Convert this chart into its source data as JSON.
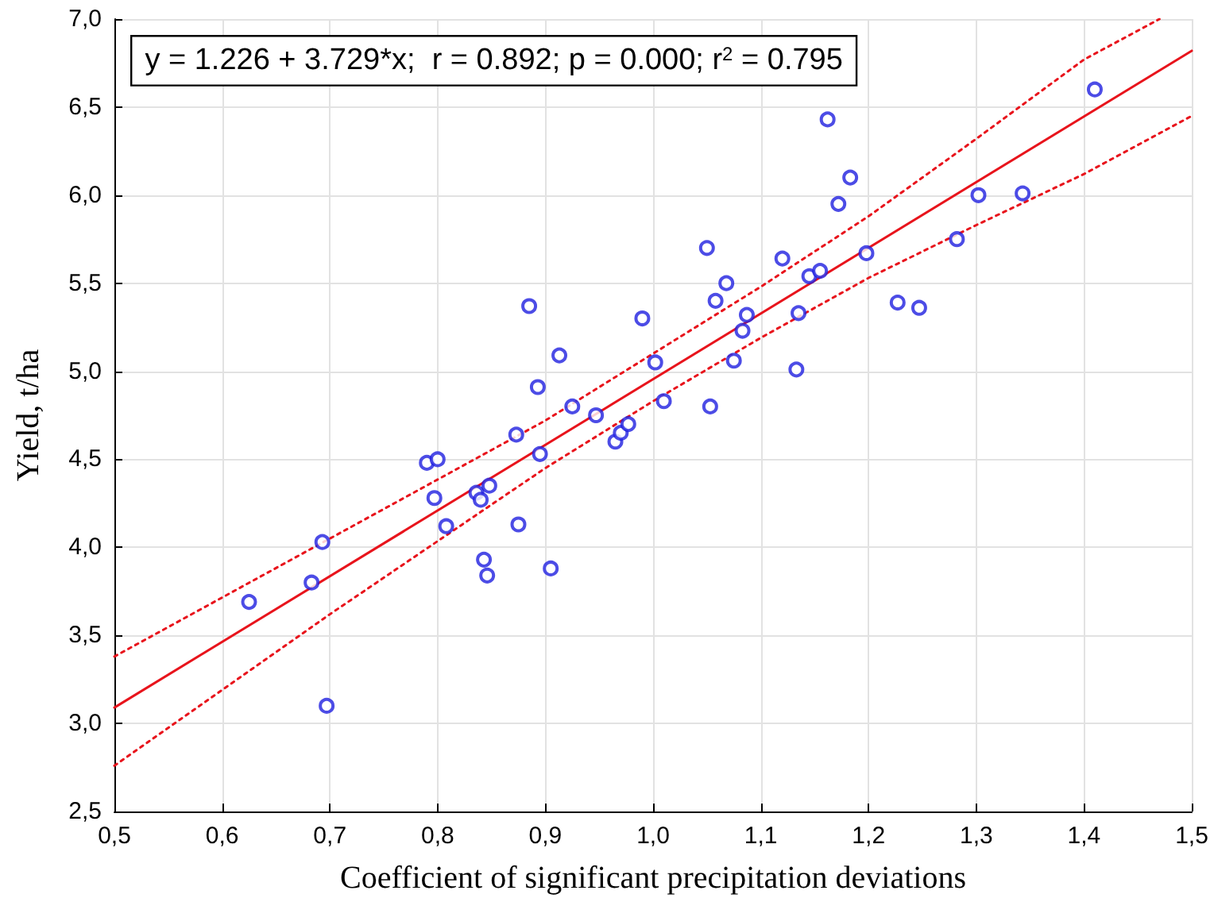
{
  "chart_data": {
    "type": "scatter",
    "xlabel": "Coefficient of significant precipitation deviations",
    "ylabel": "Yield, t/ha",
    "annotations": [
      "y = 1.226 + 3.729*x;  r = 0.892; p = 0.000; r$^{2}$ = 0.795"
    ],
    "xlim": [
      0.5,
      1.5
    ],
    "xticks": [
      {
        "value": 0.5,
        "label": "0,5"
      },
      {
        "value": 0.6,
        "label": "0,6"
      },
      {
        "value": 0.7,
        "label": "0,7"
      },
      {
        "value": 0.8,
        "label": "0,8"
      },
      {
        "value": 0.9,
        "label": "0,9"
      },
      {
        "value": 1.0,
        "label": "1,0"
      },
      {
        "value": 1.1,
        "label": "1,1"
      },
      {
        "value": 1.2,
        "label": "1,2"
      },
      {
        "value": 1.3,
        "label": "1,3"
      },
      {
        "value": 1.4,
        "label": "1,4"
      },
      {
        "value": 1.5,
        "label": "1,5"
      }
    ],
    "ylim": [
      2.5,
      7.0
    ],
    "yticks": [
      {
        "value": 2.5,
        "label": "2,5"
      },
      {
        "value": 3.0,
        "label": "3,0"
      },
      {
        "value": 3.5,
        "label": "3,5"
      },
      {
        "value": 4.0,
        "label": "4,0"
      },
      {
        "value": 4.5,
        "label": "4,5"
      },
      {
        "value": 5.0,
        "label": "5,0"
      },
      {
        "value": 5.5,
        "label": "5,5"
      },
      {
        "value": 6.0,
        "label": "6,0"
      },
      {
        "value": 6.5,
        "label": "6,5"
      },
      {
        "value": 7.0,
        "label": "7,0"
      }
    ],
    "grid": true,
    "series": [
      {
        "type": "scatter",
        "color": "#1f1fe0",
        "marker": "circle",
        "x": [
          0.625,
          0.683,
          0.693,
          0.697,
          0.79,
          0.797,
          0.8,
          0.808,
          0.836,
          0.84,
          0.843,
          0.846,
          0.848,
          0.873,
          0.875,
          0.885,
          0.893,
          0.895,
          0.905,
          0.913,
          0.925,
          0.947,
          0.965,
          0.97,
          0.977,
          0.99,
          1.002,
          1.01,
          1.05,
          1.053,
          1.058,
          1.068,
          1.075,
          1.083,
          1.087,
          1.12,
          1.133,
          1.135,
          1.145,
          1.155,
          1.162,
          1.172,
          1.183,
          1.198,
          1.227,
          1.247,
          1.282,
          1.302,
          1.343,
          1.41
        ],
        "values": [
          3.69,
          3.8,
          4.03,
          3.1,
          4.48,
          4.28,
          4.5,
          4.12,
          4.31,
          4.27,
          3.93,
          3.84,
          4.35,
          4.64,
          4.13,
          5.37,
          4.91,
          4.53,
          3.88,
          5.09,
          4.8,
          4.75,
          4.6,
          4.65,
          4.7,
          5.3,
          5.05,
          4.83,
          5.7,
          4.8,
          5.4,
          5.5,
          5.06,
          5.23,
          5.32,
          5.64,
          5.01,
          5.33,
          5.54,
          5.57,
          6.43,
          5.95,
          6.1,
          5.67,
          5.39,
          5.36,
          5.75,
          6.0,
          6.01,
          6.6
        ]
      },
      {
        "type": "line",
        "color": "#e8141c",
        "marker": "none",
        "line_style": "solid",
        "x": [
          0.5,
          1.5
        ],
        "values": [
          3.09,
          6.82
        ]
      },
      {
        "type": "line",
        "color": "#e8141c",
        "marker": "none",
        "line_style": "dotted",
        "x": [
          0.5,
          0.7,
          0.9,
          1.0,
          1.1,
          1.2,
          1.3,
          1.4,
          1.47
        ],
        "values": [
          3.38,
          4.05,
          4.72,
          5.1,
          5.48,
          5.88,
          6.32,
          6.77,
          7.0
        ]
      },
      {
        "type": "line",
        "color": "#e8141c",
        "marker": "none",
        "line_style": "dotted",
        "x": [
          0.5,
          0.7,
          0.9,
          1.0,
          1.1,
          1.2,
          1.3,
          1.4,
          1.5
        ],
        "values": [
          2.76,
          3.62,
          4.45,
          4.83,
          5.19,
          5.53,
          5.83,
          6.12,
          6.45
        ]
      }
    ]
  }
}
